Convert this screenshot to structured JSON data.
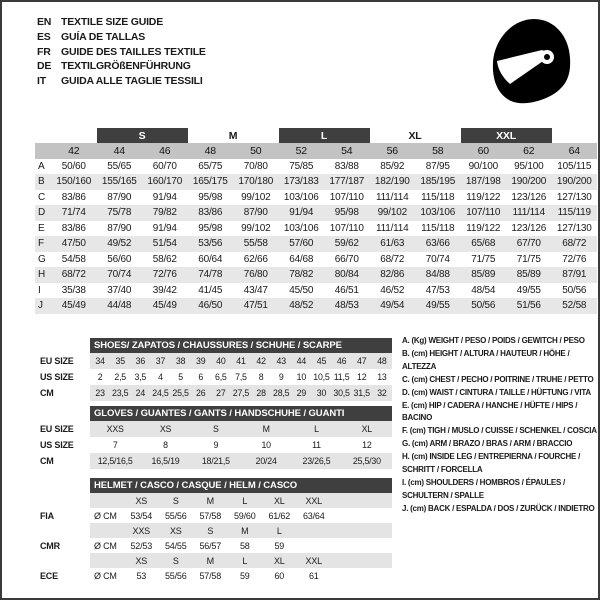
{
  "header": {
    "languages": [
      {
        "code": "EN",
        "label": "TEXTILE SIZE GUIDE"
      },
      {
        "code": "ES",
        "label": "GUÍA DE TALLAS"
      },
      {
        "code": "FR",
        "label": "GUIDE DES TAILLES TEXTILE"
      },
      {
        "code": "DE",
        "label": "TEXTILGRÖßENFÜHRUNG"
      },
      {
        "code": "IT",
        "label": "GUIDA ALLE TAGLIE TESSILI"
      }
    ],
    "helmet_icon": "full-face-helmet"
  },
  "colors": {
    "bar_dark": "#3f3f3f",
    "size_row_gray": "#c3c3c3",
    "alt_row_gray": "#e7e7e7",
    "band_gray": "#e4e4e4"
  },
  "main_table": {
    "groups": [
      {
        "label": "",
        "cols": 1,
        "dark": false
      },
      {
        "label": "S",
        "cols": 2,
        "dark": true
      },
      {
        "label": "M",
        "cols": 2,
        "dark": false
      },
      {
        "label": "L",
        "cols": 2,
        "dark": true
      },
      {
        "label": "XL",
        "cols": 2,
        "dark": false
      },
      {
        "label": "XXL",
        "cols": 2,
        "dark": true
      },
      {
        "label": "",
        "cols": 1,
        "dark": false
      }
    ],
    "sizes": [
      "42",
      "44",
      "46",
      "48",
      "50",
      "52",
      "54",
      "56",
      "58",
      "60",
      "62",
      "64"
    ],
    "rows": [
      {
        "label": "A",
        "values": [
          "50/60",
          "55/65",
          "60/70",
          "65/75",
          "70/80",
          "75/85",
          "83/88",
          "85/92",
          "87/95",
          "90/100",
          "95/100",
          "105/115"
        ]
      },
      {
        "label": "B",
        "values": [
          "150/160",
          "155/165",
          "160/170",
          "165/175",
          "170/180",
          "173/183",
          "177/187",
          "182/190",
          "185/195",
          "187/198",
          "190/200",
          "190/200"
        ]
      },
      {
        "label": "C",
        "values": [
          "83/86",
          "87/90",
          "91/94",
          "95/98",
          "99/102",
          "103/106",
          "107/110",
          "111/114",
          "115/118",
          "119/122",
          "123/126",
          "127/130"
        ]
      },
      {
        "label": "D",
        "values": [
          "71/74",
          "75/78",
          "79/82",
          "83/86",
          "87/90",
          "91/94",
          "95/98",
          "99/102",
          "103/106",
          "107/110",
          "111/114",
          "115/119"
        ]
      },
      {
        "label": "E",
        "values": [
          "83/86",
          "87/90",
          "91/94",
          "95/98",
          "99/102",
          "103/106",
          "107/110",
          "111/114",
          "115/118",
          "119/122",
          "123/126",
          "127/130"
        ]
      },
      {
        "label": "F",
        "values": [
          "47/50",
          "49/52",
          "51/54",
          "53/56",
          "55/58",
          "57/60",
          "59/62",
          "61/63",
          "63/66",
          "65/68",
          "67/70",
          "68/72"
        ]
      },
      {
        "label": "G",
        "values": [
          "54/58",
          "56/60",
          "58/62",
          "60/64",
          "62/66",
          "64/68",
          "66/70",
          "68/72",
          "70/74",
          "71/75",
          "71/75",
          "72/76"
        ]
      },
      {
        "label": "H",
        "values": [
          "68/72",
          "70/74",
          "72/76",
          "74/78",
          "76/80",
          "78/82",
          "80/84",
          "82/86",
          "84/88",
          "85/89",
          "85/89",
          "87/91"
        ]
      },
      {
        "label": "I",
        "values": [
          "35/38",
          "37/40",
          "39/42",
          "41/45",
          "43/47",
          "45/50",
          "46/51",
          "46/52",
          "47/53",
          "48/54",
          "49/55",
          "50/56"
        ]
      },
      {
        "label": "J",
        "values": [
          "45/49",
          "44/48",
          "45/49",
          "46/50",
          "47/51",
          "48/52",
          "48/53",
          "49/54",
          "49/55",
          "50/56",
          "51/56",
          "52/58"
        ]
      }
    ]
  },
  "shoes_table": {
    "title": "SHOES/ ZAPATOS / CHAUSSURES / SCHUHE / SCARPE",
    "rows": [
      {
        "label": "EU SIZE",
        "shaded": true,
        "values": [
          "34",
          "35",
          "36",
          "37",
          "38",
          "39",
          "40",
          "41",
          "42",
          "43",
          "44",
          "45",
          "46",
          "47",
          "48"
        ]
      },
      {
        "label": "US SIZE",
        "shaded": false,
        "values": [
          "2",
          "2,5",
          "3,5",
          "4",
          "5",
          "6",
          "6,5",
          "7,5",
          "8",
          "9",
          "10",
          "10,5",
          "11,5",
          "12",
          "13"
        ]
      },
      {
        "label": "CM",
        "shaded": true,
        "values": [
          "23",
          "23,5",
          "24",
          "24,5",
          "25,5",
          "26",
          "27",
          "27,5",
          "28",
          "28,5",
          "29",
          "30",
          "30,5",
          "31,5",
          "32"
        ]
      }
    ]
  },
  "gloves_table": {
    "title": "GLOVES / GUANTES / GANTS / HANDSCHUHE / GUANTI",
    "rows": [
      {
        "label": "EU SIZE",
        "shaded": true,
        "values": [
          "XXS",
          "XS",
          "S",
          "M",
          "L",
          "XL"
        ]
      },
      {
        "label": "US SIZE",
        "shaded": false,
        "values": [
          "7",
          "8",
          "9",
          "10",
          "11",
          "12"
        ]
      },
      {
        "label": "CM",
        "shaded": true,
        "values": [
          "12,5/16,5",
          "16,5/19",
          "18/21,5",
          "20/24",
          "23/26,5",
          "25,5/30"
        ]
      }
    ]
  },
  "helmet_table": {
    "title": "HELMET / CASCO / CASQUE / HELM / CASCO",
    "sections": [
      {
        "label": "FIA",
        "unit": "Ø CM",
        "sizes": [
          "XS",
          "S",
          "M",
          "L",
          "XL",
          "XXL"
        ],
        "values": [
          "53/54",
          "55/56",
          "57/58",
          "59/60",
          "61/62",
          "63/64"
        ]
      },
      {
        "label": "CMR",
        "unit": "Ø CM",
        "sizes": [
          "XXS",
          "XS",
          "S",
          "M",
          "L",
          ""
        ],
        "values": [
          "52/53",
          "54/55",
          "56/57",
          "58",
          "59",
          ""
        ]
      },
      {
        "label": "ECE",
        "unit": "Ø CM",
        "sizes": [
          "XS",
          "S",
          "M",
          "L",
          "XL",
          "XXL"
        ],
        "values": [
          "53",
          "55/56",
          "57/58",
          "59",
          "60",
          "61"
        ]
      }
    ]
  },
  "legend": {
    "items": [
      "A. (Kg) WEIGHT / PESO / POIDS / GEWITCH / PESO",
      "B. (cm) HEIGHT / ALTURA / HAUTEUR / HÖHE / ALTEZZA",
      "C. (cm) CHEST / PECHO / POITRINE / TRUHE / PETTO",
      "D. (cm) WAIST / CINTURA / TAILLE / HÜFTUNG / VITA",
      "E. (cm) HIP / CADERA / HANCHE / HÜFTE / HIPS / BACINO",
      "F. (cm) TIGH / MUSLO / CUISSE / SCHENKEL / COSCIA",
      "G. (cm) ARM / BRAZO / BRAS / ARM / BRACCIO",
      "H. (cm) INSIDE LEG / ENTREPIERNA / FOURCHE / SCHRITT / FORCELLA",
      "I. (cm) SHOULDERS / HOMBROS / ÉPAULES / SCHULTERN / SPALLE",
      "J. (cm) BACK / ESPALDA / DOS / ZURÜCK / INDIETRO"
    ]
  }
}
